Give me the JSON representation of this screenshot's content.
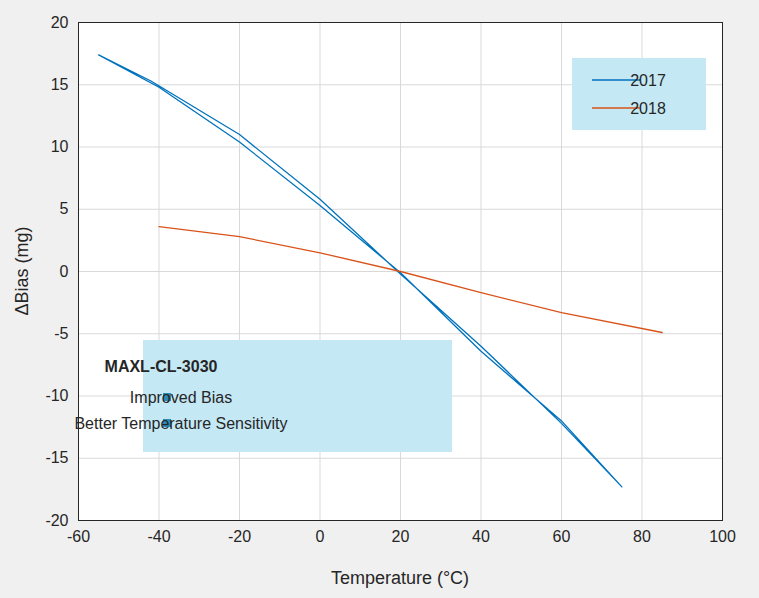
{
  "chart_data": {
    "type": "line",
    "x_label": "Temperature (°C)",
    "y_label": "ΔBias (mg)",
    "xlim": [
      -60,
      100
    ],
    "xticks": [
      -60,
      -40,
      -20,
      0,
      20,
      40,
      60,
      80,
      100
    ],
    "ylim": [
      -20,
      20
    ],
    "yticks": [
      -20,
      -15,
      -10,
      -5,
      0,
      5,
      10,
      15,
      20
    ],
    "grid": true,
    "legend": "top-right",
    "series": [
      {
        "name": "2017",
        "color": "#0072BD",
        "x": [
          -55,
          -42,
          -20,
          0,
          20,
          40,
          60,
          75,
          60,
          40,
          20,
          0,
          -20,
          -40,
          -55
        ],
        "values": [
          17.4,
          15.3,
          11.0,
          5.8,
          -0.2,
          -6.0,
          -12.2,
          -17.3,
          -12.0,
          -6.4,
          -0.1,
          5.3,
          10.4,
          14.8,
          17.4
        ]
      },
      {
        "name": "2018",
        "color": "#D95319",
        "x": [
          -40,
          -20,
          0,
          20,
          40,
          60,
          85
        ],
        "values": [
          3.6,
          2.8,
          1.5,
          0.0,
          -1.7,
          -3.3,
          -4.9
        ]
      }
    ],
    "annotation": {
      "title": "MAXL-CL-3030",
      "items": [
        "Improved Bias",
        "Better Temperature Sensitivity"
      ]
    }
  }
}
